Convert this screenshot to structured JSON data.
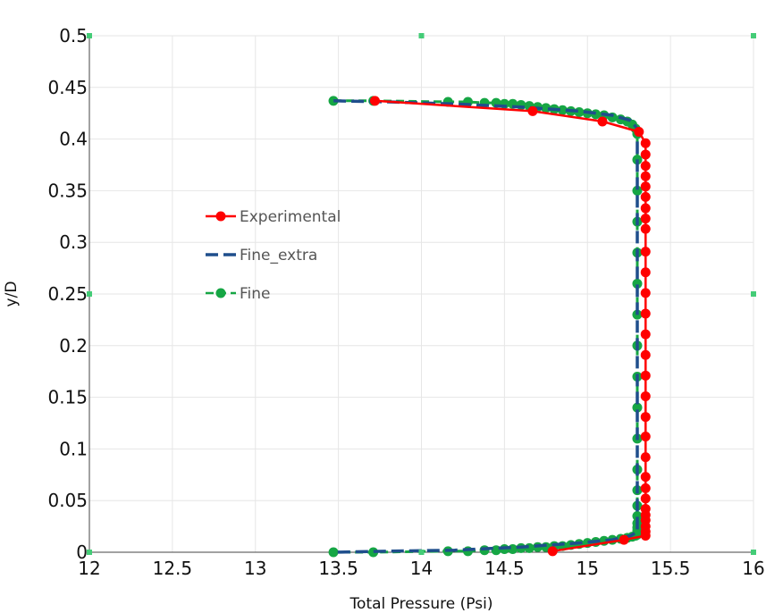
{
  "chart_data": {
    "type": "line",
    "xlabel": "Total Pressure (Psi)",
    "ylabel": "y/D",
    "xlim": [
      12,
      16
    ],
    "ylim": [
      0,
      0.5
    ],
    "xticks": [
      "12",
      "12.5",
      "13",
      "13.5",
      "14",
      "14.5",
      "15",
      "15.5",
      "16"
    ],
    "yticks": [
      "0",
      "0.05",
      "0.1",
      "0.15",
      "0.2",
      "0.25",
      "0.3",
      "0.35",
      "0.4",
      "0.45",
      "0.5"
    ],
    "grid": true,
    "legend_position": "middle-left",
    "series": [
      {
        "name": "Experimental",
        "color": "#ff0000",
        "style": "solid-with-markers",
        "x": [
          13.72,
          14.67,
          15.09,
          15.31,
          15.35,
          15.35,
          15.35,
          15.35,
          15.35,
          15.35,
          15.35,
          15.35,
          15.35,
          15.35,
          15.35,
          15.35,
          15.35,
          15.35,
          15.35,
          15.35,
          15.35,
          15.35,
          15.35,
          15.35,
          15.35,
          15.35,
          15.35,
          15.35,
          15.35,
          15.35,
          15.35,
          15.35,
          15.35,
          15.22,
          14.79
        ],
        "y": [
          0.437,
          0.427,
          0.417,
          0.407,
          0.396,
          0.385,
          0.374,
          0.364,
          0.354,
          0.344,
          0.333,
          0.323,
          0.313,
          0.291,
          0.271,
          0.251,
          0.231,
          0.211,
          0.191,
          0.171,
          0.151,
          0.131,
          0.112,
          0.092,
          0.073,
          0.062,
          0.052,
          0.042,
          0.036,
          0.031,
          0.025,
          0.02,
          0.016,
          0.012,
          0.001
        ]
      },
      {
        "name": "Fine_extra",
        "color": "#1f4e8c",
        "style": "dashed",
        "x": [
          13.47,
          13.8,
          14.2,
          14.6,
          14.95,
          15.15,
          15.26,
          15.3,
          15.3,
          15.3,
          15.3,
          15.3,
          15.3,
          15.26,
          15.15,
          14.95,
          14.6,
          14.2,
          13.8,
          13.47
        ],
        "y": [
          0.437,
          0.436,
          0.434,
          0.431,
          0.427,
          0.423,
          0.418,
          0.41,
          0.38,
          0.25,
          0.1,
          0.03,
          0.02,
          0.016,
          0.012,
          0.009,
          0.005,
          0.002,
          0.001,
          0.0
        ]
      },
      {
        "name": "Fine",
        "color": "#16a644",
        "style": "dashed-with-markers",
        "x": [
          13.47,
          13.71,
          14.16,
          14.28,
          14.38,
          14.45,
          14.5,
          14.55,
          14.6,
          14.65,
          14.7,
          14.75,
          14.8,
          14.85,
          14.9,
          14.95,
          15.0,
          15.05,
          15.1,
          15.15,
          15.2,
          15.24,
          15.27,
          15.29,
          15.3,
          15.3,
          15.3,
          15.3,
          15.3,
          15.3,
          15.3,
          15.3,
          15.3,
          15.3,
          15.3,
          15.3,
          15.3,
          15.3,
          15.3,
          15.3,
          15.3,
          15.3,
          15.3,
          15.3,
          15.29,
          15.27,
          15.24,
          15.2,
          15.15,
          15.1,
          15.05,
          15.0,
          14.95,
          14.9,
          14.85,
          14.8,
          14.75,
          14.7,
          14.65,
          14.6,
          14.55,
          14.5,
          14.45,
          14.38,
          14.28,
          14.16,
          13.71,
          13.47
        ],
        "y": [
          0.437,
          0.437,
          0.436,
          0.436,
          0.435,
          0.435,
          0.434,
          0.434,
          0.433,
          0.432,
          0.431,
          0.43,
          0.429,
          0.428,
          0.427,
          0.426,
          0.425,
          0.424,
          0.423,
          0.421,
          0.419,
          0.417,
          0.414,
          0.41,
          0.405,
          0.38,
          0.35,
          0.32,
          0.29,
          0.26,
          0.23,
          0.2,
          0.17,
          0.14,
          0.11,
          0.08,
          0.06,
          0.045,
          0.035,
          0.028,
          0.024,
          0.021,
          0.019,
          0.017,
          0.016,
          0.015,
          0.014,
          0.013,
          0.012,
          0.011,
          0.01,
          0.009,
          0.008,
          0.007,
          0.006,
          0.006,
          0.005,
          0.005,
          0.004,
          0.004,
          0.003,
          0.003,
          0.002,
          0.002,
          0.001,
          0.001,
          0.0,
          0.0
        ]
      }
    ]
  }
}
